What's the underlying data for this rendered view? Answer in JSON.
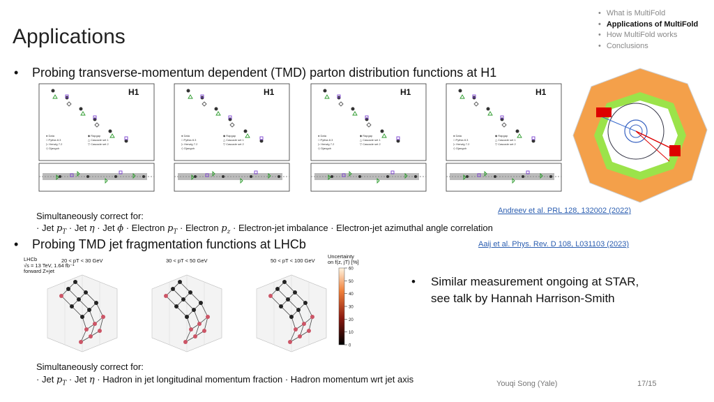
{
  "nav": {
    "items": [
      "What is MultiFold",
      "Applications of MultiFold",
      "How MultiFold works",
      "Conclusions"
    ],
    "current": 1
  },
  "title": "Applications",
  "section1": {
    "heading": "Probing transverse-momentum dependent (TMD) parton distribution functions at H1",
    "plot_labels": [
      "H1",
      "H1",
      "H1",
      "H1"
    ],
    "reference": "Andreev et al. PRL 128, 132002 (2022)",
    "correct_label": "Simultaneously correct for:",
    "separator": "·",
    "items": [
      {
        "text": "Jet",
        "var": "p",
        "sub": "T"
      },
      {
        "text": "Jet",
        "var": "η"
      },
      {
        "text": "Jet",
        "var": "ϕ"
      },
      {
        "text": "Electron",
        "var": "p",
        "sub": "T"
      },
      {
        "text": "Electron",
        "var": "p",
        "sub": "z"
      },
      {
        "text": "Electron-jet imbalance"
      },
      {
        "text": "Electron-jet azimuthal angle correlation"
      }
    ]
  },
  "section2": {
    "heading": "Probing TMD jet fragmentation functions at LHCb",
    "reference": "Aaij et al. Phys. Rev. D 108, L031103 (2023)",
    "experiment": "LHCb",
    "conditions": [
      "√s = 13 TeV, 1.64 fb⁻¹",
      "forward Z+jet"
    ],
    "panel_titles": [
      "20 < pT < 30 GeV",
      "30 < pT < 50 GeV",
      "50 < pT < 100 GeV"
    ],
    "colorbar": {
      "label": [
        "Uncertainty",
        "on f(z, jT) [%]"
      ],
      "ticks": [
        0,
        10,
        20,
        30,
        40,
        50,
        60
      ]
    },
    "correct_label": "Simultaneously correct for:",
    "separator": "·",
    "items": [
      {
        "text": "Jet",
        "var": "p",
        "sub": "T"
      },
      {
        "text": "Jet",
        "var": "η"
      },
      {
        "text": "Hadron in jet longitudinal momentum fraction"
      },
      {
        "text": "Hadron momentum wrt jet axis"
      }
    ]
  },
  "star_note": [
    "Similar measurement ongoing at STAR,",
    "see talk by Hannah Harrison-Smith"
  ],
  "footer": {
    "author": "Youqi Song (Yale)",
    "page": "17/15"
  }
}
